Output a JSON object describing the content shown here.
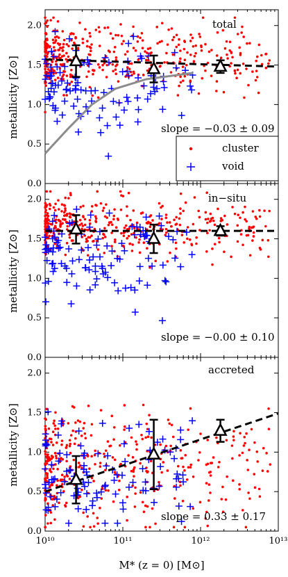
{
  "chart_data": [
    {
      "type": "scatter",
      "label": "total",
      "slope_text": "slope = −0.03 ± 0.09",
      "ylabel": "metallicity [Z⊙]",
      "ylim": [
        0.0,
        2.2
      ],
      "yticks": [
        "0.0",
        "0.5",
        "1.0",
        "1.5",
        "2.0"
      ],
      "xscale": "log",
      "xlim": [
        10000000000.0,
        10000000000000.0
      ],
      "fit": {
        "slope": -0.03,
        "intercept_at_1e10": 1.57,
        "style": "dashed"
      },
      "binned_points": [
        {
          "x": 25000000000.0,
          "y": 1.55,
          "err": 0.2
        },
        {
          "x": 250000000000.0,
          "y": 1.45,
          "err": 0.17
        },
        {
          "x": 1800000000000.0,
          "y": 1.48,
          "err": 0.08
        }
      ],
      "model_curve": {
        "color": "#8c8c8c",
        "points": [
          [
            10000000000.0,
            0.38
          ],
          [
            20000000000.0,
            0.7
          ],
          [
            40000000000.0,
            1.0
          ],
          [
            80000000000.0,
            1.2
          ],
          [
            200000000000.0,
            1.32
          ],
          [
            800000000000.0,
            1.4
          ]
        ]
      },
      "cluster": {
        "center": 1.6,
        "spread": 0.2,
        "n": 420
      },
      "void": {
        "center": 1.2,
        "spread": 0.3,
        "n": 110
      },
      "legend": {
        "cluster": "cluster",
        "void": "void",
        "placement": "lower-right"
      }
    },
    {
      "type": "scatter",
      "label": "in−situ",
      "slope_text": "slope = −0.00 ± 0.10",
      "ylabel": "metallicity [Z⊙]",
      "ylim": [
        0.0,
        2.2
      ],
      "yticks": [
        "0.0",
        "0.5",
        "1.0",
        "1.5",
        "2.0"
      ],
      "xscale": "log",
      "xlim": [
        10000000000.0,
        10000000000000.0
      ],
      "fit": {
        "slope": 0.0,
        "intercept_at_1e10": 1.6,
        "style": "dashed"
      },
      "binned_points": [
        {
          "x": 25000000000.0,
          "y": 1.62,
          "err": 0.18
        },
        {
          "x": 250000000000.0,
          "y": 1.5,
          "err": 0.18
        },
        {
          "x": 1800000000000.0,
          "y": 1.6,
          "err": 0.06
        }
      ],
      "cluster": {
        "center": 1.65,
        "spread": 0.18,
        "n": 420
      },
      "void": {
        "center": 1.25,
        "spread": 0.3,
        "n": 110
      }
    },
    {
      "type": "scatter",
      "label": "accreted",
      "slope_text": "slope = 0.33 ± 0.17",
      "ylabel": "metallicity [Z⊙]",
      "xlabel": "M* (z = 0) [M⊙]",
      "ylim": [
        0.0,
        2.2
      ],
      "yticks": [
        "0.0",
        "0.5",
        "1.0",
        "1.5",
        "2.0"
      ],
      "xscale": "log",
      "xlim": [
        10000000000.0,
        10000000000000.0
      ],
      "xticks": [
        "10¹⁰",
        "10¹¹",
        "10¹²",
        "10¹³"
      ],
      "fit": {
        "slope": 0.33,
        "intercept_at_1e10": 0.5,
        "style": "dashed"
      },
      "binned_points": [
        {
          "x": 25000000000.0,
          "y": 0.65,
          "err": 0.3
        },
        {
          "x": 250000000000.0,
          "y": 0.97,
          "err": 0.44
        },
        {
          "x": 1800000000000.0,
          "y": 1.27,
          "err": 0.14
        }
      ],
      "cluster": {
        "center": 0.8,
        "spread": 0.35,
        "n": 420
      },
      "void": {
        "center": 0.7,
        "spread": 0.35,
        "n": 110
      }
    }
  ]
}
